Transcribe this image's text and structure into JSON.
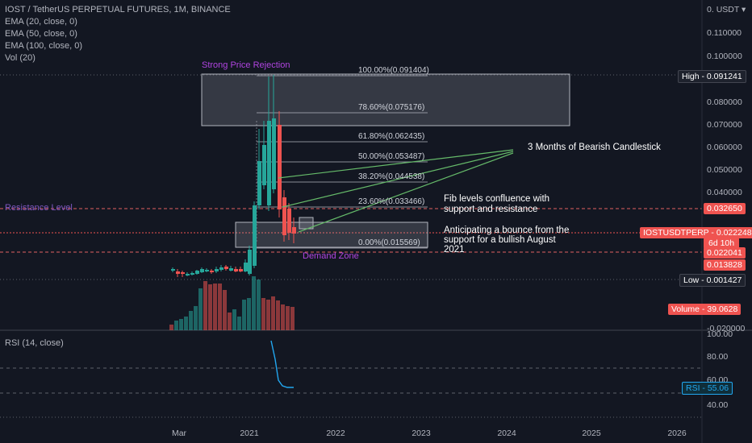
{
  "header": {
    "title": "IOST / TetherUS PERPETUAL FUTURES, 1M, BINANCE",
    "indicators": [
      "EMA (20, close, 0)",
      "EMA (50, close, 0)",
      "EMA (100, close, 0)",
      "Vol (20)"
    ]
  },
  "price_axis": {
    "currency": "USDT",
    "labels": [
      "0.110000",
      "0.100000",
      "0.080000",
      "0.070000",
      "0.060000",
      "0.050000",
      "0.040000",
      "-0.020000"
    ]
  },
  "price_tags": {
    "high": "High - 0.091241",
    "resistance": "0.032650",
    "symbol": "IOSTUSDTPERP - 0.022248",
    "countdown": "6d 10h",
    "support": "0.022041",
    "ema": "0.013828",
    "low": "Low - 0.001427",
    "volume": "Volume - 39.0628"
  },
  "fib_levels": [
    {
      "label": "100.00%(0.091404)",
      "value": 0.091404
    },
    {
      "label": "78.60%(0.075176)",
      "value": 0.075176
    },
    {
      "label": "61.80%(0.062435)",
      "value": 0.062435
    },
    {
      "label": "50.00%(0.053487)",
      "value": 0.053487
    },
    {
      "label": "38.20%(0.044538)",
      "value": 0.044538
    },
    {
      "label": "23.60%(0.033466)",
      "value": 0.033466
    },
    {
      "label": "0.00%(0.015569)",
      "value": 0.015569
    }
  ],
  "annotations": {
    "rejection": "Strong Price Rejection",
    "resistance": "Resistance Level",
    "bearish": "3 Months of Bearish Candlestick",
    "fib_confluence_1": "Fib levels confluence with",
    "fib_confluence_2": "support and resistance",
    "bounce_1": "Anticipating a bounce from the",
    "bounce_2": "support for a bullish August",
    "bounce_3": "2021",
    "demand": "Demand Zone"
  },
  "rsi": {
    "title": "RSI (14, close)",
    "labels": [
      "100.00",
      "80.00",
      "60.00",
      "40.00"
    ],
    "value_tag": "RSI - 55.06"
  },
  "time_axis": [
    "Mar",
    "2021",
    "2022",
    "2023",
    "2024",
    "2025",
    "2026"
  ],
  "colors": {
    "bg": "#131722",
    "up": "#26a69a",
    "down": "#ef5350",
    "accent_purple": "#b044e0",
    "line_green": "#66bb6a",
    "rsi_line": "#22a7f0"
  }
}
